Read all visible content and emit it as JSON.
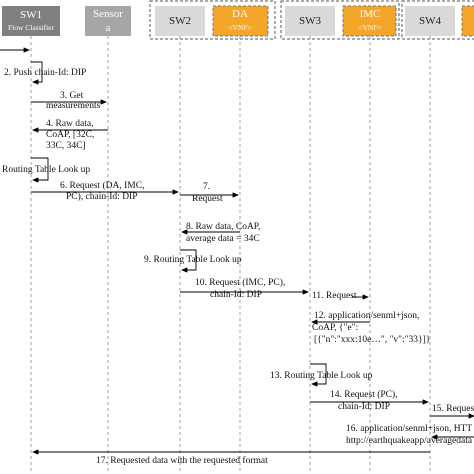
{
  "participants": [
    {
      "label": "SW1",
      "sublabel": "Flow Classifier"
    },
    {
      "label": "Sensor",
      "sublabel": "a"
    },
    {
      "label": "SW2"
    },
    {
      "label": "DA",
      "sublabel": "<VNF>"
    },
    {
      "label": "SW3"
    },
    {
      "label": "IMC",
      "sublabel": "<VNF>"
    },
    {
      "label": "SW4"
    }
  ],
  "messages": [
    {
      "lines": [
        "2. Push chain-Id: DIP"
      ]
    },
    {
      "lines": [
        "3. Get",
        "measurements"
      ]
    },
    {
      "lines": [
        "4. Raw data,",
        "CoAP, [32C,",
        "33C, 34C]"
      ]
    },
    {
      "lines": [
        "Routing Table Look up"
      ]
    },
    {
      "lines": [
        "6. Request (DA, IMC,",
        "PC), chain-Id: DIP"
      ]
    },
    {
      "lines": [
        "7.",
        "Request"
      ]
    },
    {
      "lines": [
        "8. Raw data, CoAP,",
        "average data = 34C"
      ]
    },
    {
      "lines": [
        "9. Routing Table Look up"
      ]
    },
    {
      "lines": [
        "10. Request (IMC, PC),",
        "chain-Id: DIP"
      ]
    },
    {
      "lines": [
        "11. Request"
      ]
    },
    {
      "lines": [
        "12. application/senml+json,",
        "CoAP, {\"e\":",
        "[{\"n\":\"xxx:10e…\", \"v\":\"33}]}"
      ]
    },
    {
      "lines": [
        "13. Routing Table Look up"
      ]
    },
    {
      "lines": [
        "14. Request (PC),",
        "chain-Id: DIP"
      ]
    },
    {
      "lines": [
        "15. Reques"
      ]
    },
    {
      "lines": [
        "16. application/senml+json, HTT",
        "http://earthquakeapp/averagedata"
      ]
    },
    {
      "lines": [
        "17. Requested data with the requested format"
      ]
    }
  ]
}
